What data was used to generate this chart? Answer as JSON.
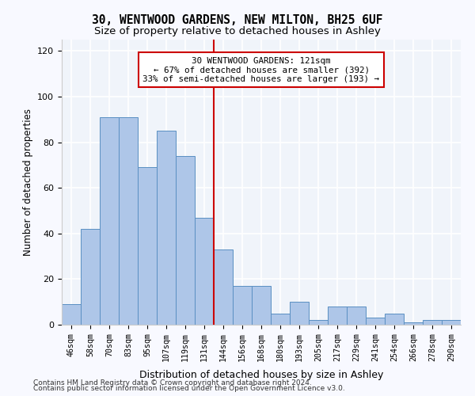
{
  "title1": "30, WENTWOOD GARDENS, NEW MILTON, BH25 6UF",
  "title2": "Size of property relative to detached houses in Ashley",
  "xlabel": "Distribution of detached houses by size in Ashley",
  "ylabel": "Number of detached properties",
  "bar_labels": [
    "46sqm",
    "58sqm",
    "70sqm",
    "83sqm",
    "95sqm",
    "107sqm",
    "119sqm",
    "131sqm",
    "144sqm",
    "156sqm",
    "168sqm",
    "180sqm",
    "193sqm",
    "205sqm",
    "217sqm",
    "229sqm",
    "241sqm",
    "254sqm",
    "266sqm",
    "278sqm",
    "290sqm"
  ],
  "bar_values": [
    9,
    42,
    91,
    91,
    69,
    85,
    74,
    47,
    33,
    17,
    17,
    5,
    10,
    2,
    8,
    8,
    3,
    5,
    1,
    2,
    2
  ],
  "bar_color": "#aec6e8",
  "bar_edge_color": "#5a8fc2",
  "vline_x": 8,
  "vline_color": "#cc0000",
  "annotation_text": "30 WENTWOOD GARDENS: 121sqm\n← 67% of detached houses are smaller (392)\n33% of semi-detached houses are larger (193) →",
  "annotation_box_color": "#ffffff",
  "annotation_box_edge_color": "#cc0000",
  "ylim": [
    0,
    125
  ],
  "yticks": [
    0,
    20,
    40,
    60,
    80,
    100,
    120
  ],
  "background_color": "#f0f4fa",
  "grid_color": "#ffffff",
  "footer1": "Contains HM Land Registry data © Crown copyright and database right 2024.",
  "footer2": "Contains public sector information licensed under the Open Government Licence v3.0."
}
